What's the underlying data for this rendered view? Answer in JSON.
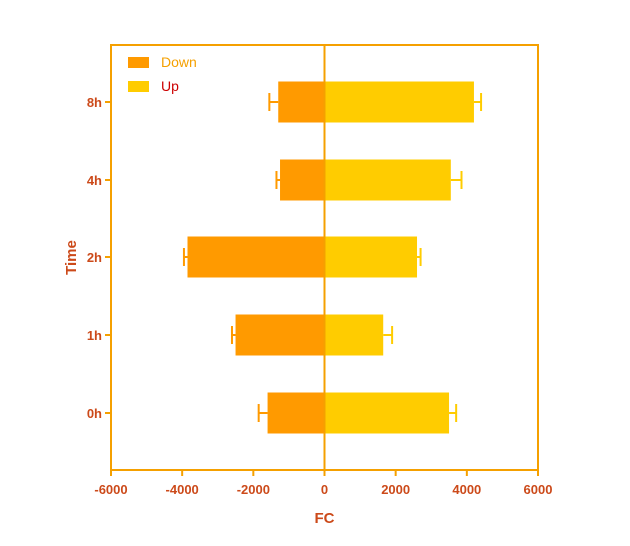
{
  "chart_data": {
    "type": "bar",
    "orientation": "horizontal",
    "categories": [
      "0h",
      "1h",
      "2h",
      "4h",
      "8h"
    ],
    "series": [
      {
        "name": "Down",
        "color": "#ff9a00",
        "values": [
          -1600,
          -2500,
          -3850,
          -1250,
          -1300
        ],
        "error": [
          250,
          100,
          100,
          100,
          250
        ]
      },
      {
        "name": "Up",
        "color": "#ffcc00",
        "values": [
          3500,
          1650,
          2600,
          3550,
          4200
        ],
        "error": [
          200,
          250,
          100,
          300,
          200
        ]
      }
    ],
    "xlabel": "FC",
    "ylabel": "Time",
    "xlim": [
      -6000,
      6000
    ],
    "xticks": [
      "-6000",
      "-4000",
      "-2000",
      "0",
      "2000",
      "4000",
      "6000"
    ],
    "legend_position": "top-left",
    "grid": false,
    "colors": {
      "axis": "#f5a000",
      "label_text": "#cc4a1a",
      "legend_down_text": "#f5a000",
      "legend_up_text": "#cc0000"
    }
  }
}
